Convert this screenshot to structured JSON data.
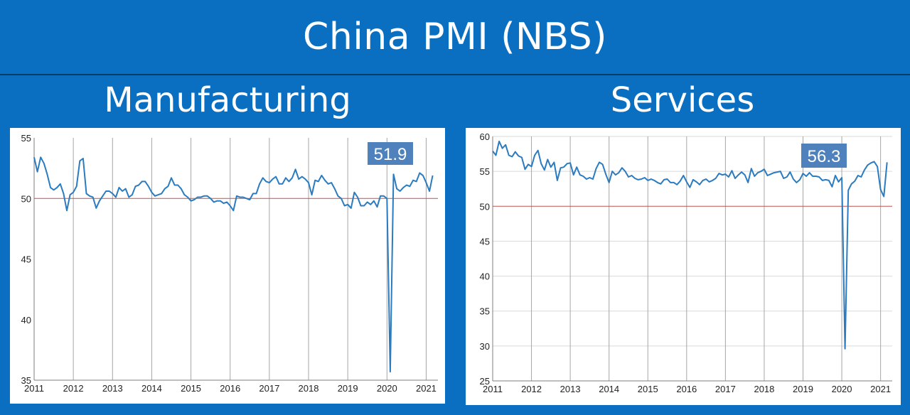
{
  "header": {
    "title": "China PMI (NBS)"
  },
  "panels": {
    "left": {
      "title": "Manufacturing"
    },
    "right": {
      "title": "Services"
    }
  },
  "colors": {
    "background": "#0b6fc1",
    "line": "#2a7bc0",
    "reference": "#c0504d",
    "badge": "#4f81bd"
  },
  "chart_data": [
    {
      "type": "line",
      "title": "Manufacturing",
      "xlabel": "",
      "ylabel": "",
      "xlim": [
        2011.0,
        2021.3
      ],
      "ylim": [
        35,
        55
      ],
      "yticks": [
        35,
        40,
        45,
        50,
        55
      ],
      "xticks": [
        2011,
        2012,
        2013,
        2014,
        2015,
        2016,
        2017,
        2018,
        2019,
        2020,
        2021
      ],
      "reference_line": 50,
      "last_value_label": "51.9",
      "grid": "vertical",
      "series": [
        {
          "x_start": "2011-01",
          "frequency": "monthly",
          "values": [
            53.4,
            52.2,
            53.4,
            52.9,
            52.0,
            50.9,
            50.7,
            50.9,
            51.2,
            50.4,
            49.0,
            50.3,
            50.5,
            51.0,
            53.1,
            53.3,
            50.4,
            50.2,
            50.1,
            49.2,
            49.8,
            50.2,
            50.6,
            50.6,
            50.4,
            50.1,
            50.9,
            50.6,
            50.8,
            50.1,
            50.3,
            51.0,
            51.1,
            51.4,
            51.4,
            51.0,
            50.5,
            50.2,
            50.3,
            50.4,
            50.8,
            51.0,
            51.7,
            51.1,
            51.1,
            50.8,
            50.3,
            50.1,
            49.8,
            49.9,
            50.1,
            50.1,
            50.2,
            50.2,
            50.0,
            49.7,
            49.8,
            49.8,
            49.6,
            49.7,
            49.4,
            49.0,
            50.2,
            50.1,
            50.1,
            50.0,
            49.9,
            50.4,
            50.4,
            51.2,
            51.7,
            51.4,
            51.3,
            51.6,
            51.8,
            51.2,
            51.2,
            51.7,
            51.4,
            51.7,
            52.4,
            51.6,
            51.8,
            51.6,
            51.3,
            50.3,
            51.5,
            51.4,
            51.9,
            51.5,
            51.2,
            51.3,
            50.8,
            50.2,
            50.0,
            49.4,
            49.5,
            49.2,
            50.5,
            50.1,
            49.4,
            49.4,
            49.7,
            49.5,
            49.8,
            49.3,
            50.2,
            50.2,
            50.0,
            35.7,
            52.0,
            50.8,
            50.6,
            50.9,
            51.1,
            51.0,
            51.5,
            51.4,
            52.1,
            51.9,
            51.3,
            50.6,
            51.9
          ]
        }
      ]
    },
    {
      "type": "line",
      "title": "Services",
      "xlabel": "",
      "ylabel": "",
      "xlim": [
        2011.0,
        2021.3
      ],
      "ylim": [
        25,
        60
      ],
      "yticks": [
        25,
        30,
        35,
        40,
        45,
        50,
        55,
        60
      ],
      "xticks": [
        2011,
        2012,
        2013,
        2014,
        2015,
        2016,
        2017,
        2018,
        2019,
        2020,
        2021
      ],
      "reference_line": 50,
      "last_value_label": "56.3",
      "grid": "both",
      "series": [
        {
          "x_start": "2011-01",
          "frequency": "monthly",
          "values": [
            57.9,
            57.3,
            59.3,
            58.3,
            58.8,
            57.3,
            57.1,
            57.8,
            57.2,
            57.0,
            55.3,
            56.0,
            55.7,
            57.3,
            58.0,
            56.1,
            55.2,
            56.7,
            55.6,
            56.3,
            53.7,
            55.5,
            55.6,
            56.1,
            56.2,
            54.5,
            55.6,
            54.5,
            54.3,
            53.9,
            54.1,
            53.9,
            55.4,
            56.3,
            56.0,
            54.6,
            53.4,
            55.0,
            54.5,
            54.8,
            55.5,
            55.0,
            54.2,
            54.4,
            54.0,
            53.8,
            53.9,
            54.1,
            53.7,
            53.9,
            53.7,
            53.4,
            53.2,
            53.8,
            53.9,
            53.4,
            53.4,
            53.1,
            53.6,
            54.4,
            53.5,
            52.7,
            53.8,
            53.5,
            53.1,
            53.7,
            53.9,
            53.5,
            53.7,
            54.0,
            54.7,
            54.5,
            54.6,
            54.2,
            55.1,
            54.0,
            54.5,
            54.9,
            54.5,
            53.4,
            55.4,
            54.3,
            54.8,
            55.0,
            55.3,
            54.4,
            54.6,
            54.8,
            54.9,
            55.0,
            54.0,
            54.2,
            54.9,
            53.9,
            53.4,
            53.8,
            54.7,
            54.3,
            54.8,
            54.3,
            54.3,
            54.2,
            53.7,
            53.8,
            53.7,
            52.8,
            54.4,
            53.5,
            54.1,
            29.6,
            52.3,
            53.2,
            53.6,
            54.4,
            54.2,
            55.2,
            55.9,
            56.2,
            56.4,
            55.7,
            52.4,
            51.4,
            56.3
          ]
        }
      ]
    }
  ]
}
